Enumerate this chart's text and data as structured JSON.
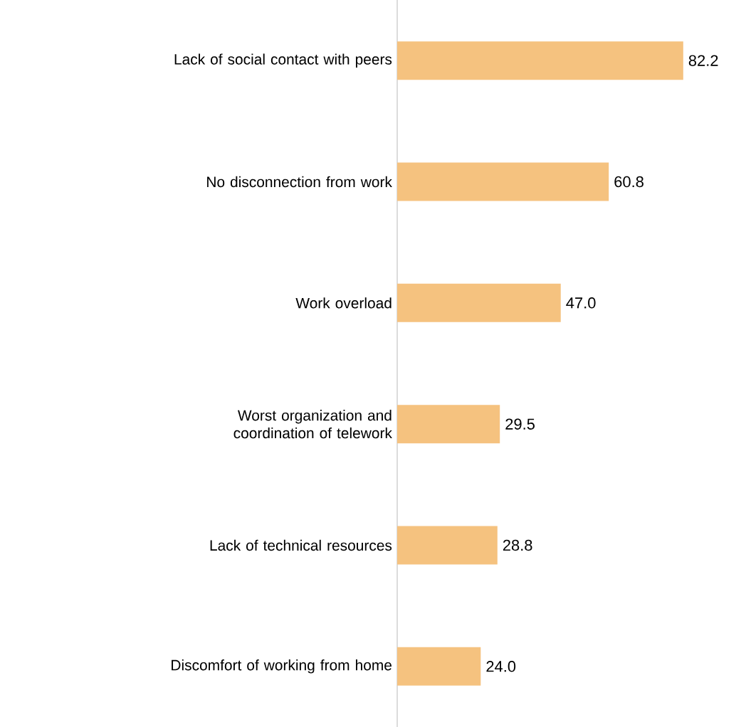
{
  "chart_data": {
    "type": "bar",
    "orientation": "horizontal",
    "categories": [
      "Lack of social contact with peers",
      "No disconnection from work",
      "Work overload",
      "Worst organization and coordination of telework",
      "Lack of technical resources",
      "Discomfort of working from home"
    ],
    "values": [
      82.2,
      60.8,
      47.0,
      29.5,
      28.8,
      24.0
    ],
    "value_labels": [
      "82.2",
      "60.8",
      "47.0",
      "29.5",
      "28.8",
      "24.0"
    ],
    "color": "#f5c27f",
    "tick_labels": "y"
  }
}
